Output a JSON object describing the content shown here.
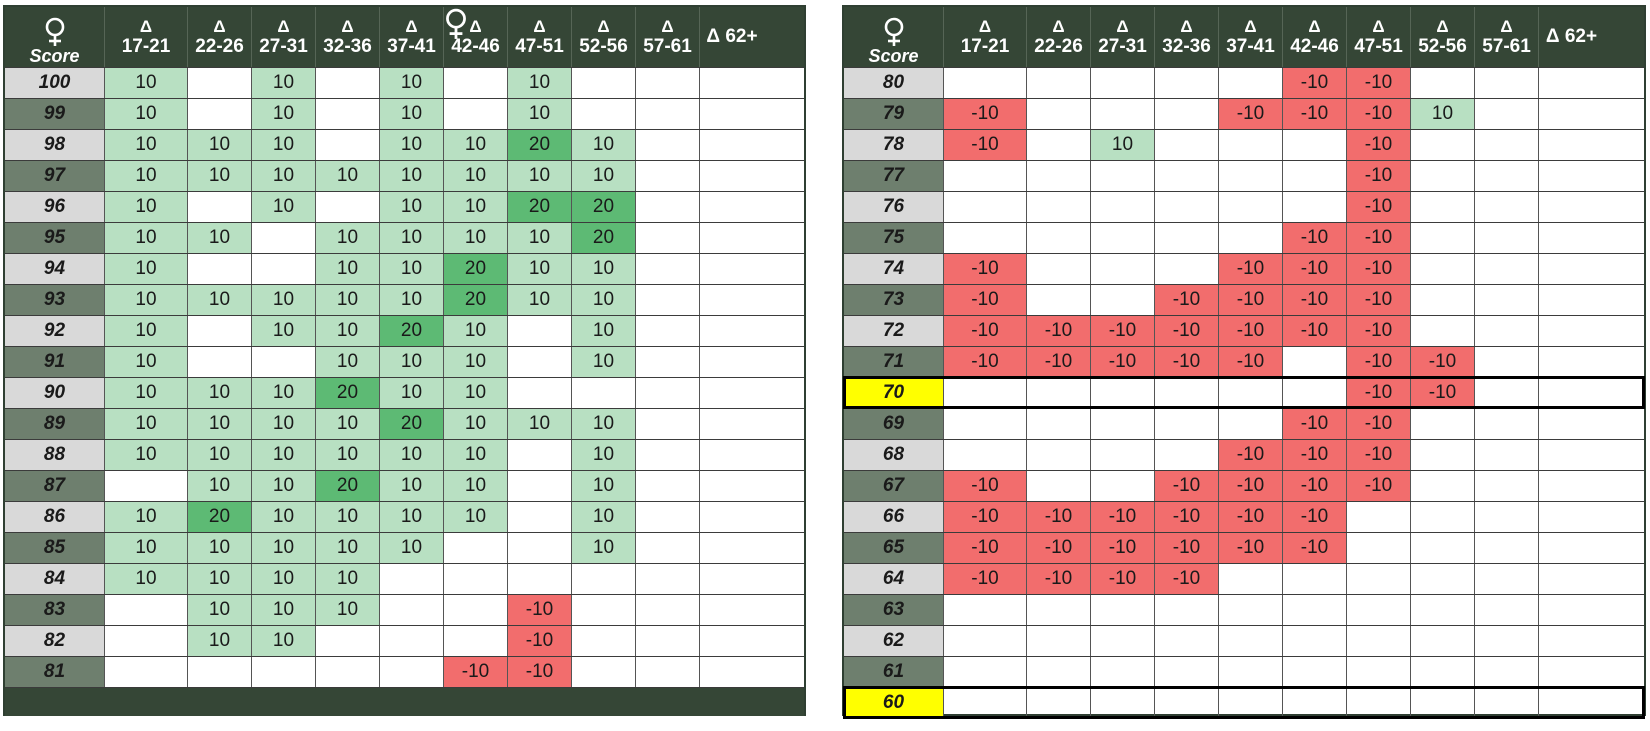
{
  "colors": {
    "header_bg": "#354636",
    "score_light": "#d9d9d9",
    "score_dark": "#6e7f6e",
    "score_highlight": "#ffff00",
    "green_light": "#b8e0c2",
    "green_dark": "#5dba74",
    "red": "#f26d6d"
  },
  "icons": {
    "score_header": "female-symbol-icon"
  },
  "columns": [
    {
      "delta": "Δ",
      "range": "17-21"
    },
    {
      "delta": "Δ",
      "range": "22-26"
    },
    {
      "delta": "Δ",
      "range": "27-31"
    },
    {
      "delta": "Δ",
      "range": "32-36"
    },
    {
      "delta": "Δ",
      "range": "37-41"
    },
    {
      "delta": "Δ",
      "range": "42-46"
    },
    {
      "delta": "Δ",
      "range": "47-51"
    },
    {
      "delta": "Δ",
      "range": "52-56"
    },
    {
      "delta": "Δ",
      "range": "57-61"
    },
    {
      "single": "Δ 62+"
    }
  ],
  "left_table": {
    "score_header": "Score",
    "rows": [
      {
        "score": "100",
        "shade": "light",
        "cells": [
          10,
          null,
          10,
          null,
          10,
          null,
          10,
          null,
          null,
          null
        ]
      },
      {
        "score": "99",
        "shade": "dark",
        "cells": [
          10,
          null,
          10,
          null,
          10,
          null,
          10,
          null,
          null,
          null
        ]
      },
      {
        "score": "98",
        "shade": "light",
        "cells": [
          10,
          10,
          10,
          null,
          10,
          10,
          20,
          10,
          null,
          null
        ]
      },
      {
        "score": "97",
        "shade": "dark",
        "cells": [
          10,
          10,
          10,
          10,
          10,
          10,
          10,
          10,
          null,
          null
        ]
      },
      {
        "score": "96",
        "shade": "light",
        "cells": [
          10,
          null,
          10,
          null,
          10,
          10,
          20,
          20,
          null,
          null
        ]
      },
      {
        "score": "95",
        "shade": "dark",
        "cells": [
          10,
          10,
          null,
          10,
          10,
          10,
          10,
          20,
          null,
          null
        ]
      },
      {
        "score": "94",
        "shade": "light",
        "cells": [
          10,
          null,
          null,
          10,
          10,
          20,
          10,
          10,
          null,
          null
        ]
      },
      {
        "score": "93",
        "shade": "dark",
        "cells": [
          10,
          10,
          10,
          10,
          10,
          20,
          10,
          10,
          null,
          null
        ]
      },
      {
        "score": "92",
        "shade": "light",
        "cells": [
          10,
          null,
          10,
          10,
          20,
          10,
          null,
          10,
          null,
          null
        ]
      },
      {
        "score": "91",
        "shade": "dark",
        "cells": [
          10,
          null,
          null,
          10,
          10,
          10,
          null,
          10,
          null,
          null
        ]
      },
      {
        "score": "90",
        "shade": "light",
        "cells": [
          10,
          10,
          10,
          20,
          10,
          10,
          null,
          null,
          null,
          null
        ]
      },
      {
        "score": "89",
        "shade": "dark",
        "cells": [
          10,
          10,
          10,
          10,
          20,
          10,
          10,
          10,
          null,
          null
        ]
      },
      {
        "score": "88",
        "shade": "light",
        "cells": [
          10,
          10,
          10,
          10,
          10,
          10,
          null,
          10,
          null,
          null
        ]
      },
      {
        "score": "87",
        "shade": "dark",
        "cells": [
          null,
          10,
          10,
          20,
          10,
          10,
          null,
          10,
          null,
          null
        ]
      },
      {
        "score": "86",
        "shade": "light",
        "cells": [
          10,
          20,
          10,
          10,
          10,
          10,
          null,
          10,
          null,
          null
        ]
      },
      {
        "score": "85",
        "shade": "dark",
        "cells": [
          10,
          10,
          10,
          10,
          10,
          null,
          null,
          10,
          null,
          null
        ]
      },
      {
        "score": "84",
        "shade": "light",
        "cells": [
          10,
          10,
          10,
          10,
          null,
          null,
          null,
          null,
          null,
          null
        ]
      },
      {
        "score": "83",
        "shade": "dark",
        "cells": [
          null,
          10,
          10,
          10,
          null,
          null,
          -10,
          null,
          null,
          null
        ]
      },
      {
        "score": "82",
        "shade": "light",
        "cells": [
          null,
          10,
          10,
          null,
          null,
          null,
          -10,
          null,
          null,
          null
        ]
      },
      {
        "score": "81",
        "shade": "dark",
        "cells": [
          null,
          null,
          null,
          null,
          null,
          -10,
          -10,
          null,
          null,
          null
        ]
      }
    ]
  },
  "right_table": {
    "score_header": "Score",
    "rows": [
      {
        "score": "80",
        "shade": "light",
        "cells": [
          null,
          null,
          null,
          null,
          null,
          -10,
          -10,
          null,
          null,
          null
        ]
      },
      {
        "score": "79",
        "shade": "dark",
        "cells": [
          -10,
          null,
          null,
          null,
          -10,
          -10,
          -10,
          10,
          null,
          null
        ]
      },
      {
        "score": "78",
        "shade": "light",
        "cells": [
          -10,
          null,
          10,
          null,
          null,
          null,
          -10,
          null,
          null,
          null
        ]
      },
      {
        "score": "77",
        "shade": "dark",
        "cells": [
          null,
          null,
          null,
          null,
          null,
          null,
          -10,
          null,
          null,
          null
        ]
      },
      {
        "score": "76",
        "shade": "light",
        "cells": [
          null,
          null,
          null,
          null,
          null,
          null,
          -10,
          null,
          null,
          null
        ]
      },
      {
        "score": "75",
        "shade": "dark",
        "cells": [
          null,
          null,
          null,
          null,
          null,
          -10,
          -10,
          null,
          null,
          null
        ]
      },
      {
        "score": "74",
        "shade": "light",
        "cells": [
          -10,
          null,
          null,
          null,
          -10,
          -10,
          -10,
          null,
          null,
          null
        ]
      },
      {
        "score": "73",
        "shade": "dark",
        "cells": [
          -10,
          null,
          null,
          -10,
          -10,
          -10,
          -10,
          null,
          null,
          null
        ]
      },
      {
        "score": "72",
        "shade": "light",
        "cells": [
          -10,
          -10,
          -10,
          -10,
          -10,
          -10,
          -10,
          null,
          null,
          null
        ]
      },
      {
        "score": "71",
        "shade": "dark",
        "cells": [
          -10,
          -10,
          -10,
          -10,
          -10,
          null,
          -10,
          -10,
          null,
          null
        ]
      },
      {
        "score": "70",
        "shade": "yellow",
        "highlight": true,
        "cells": [
          null,
          null,
          null,
          null,
          null,
          null,
          -10,
          -10,
          null,
          null
        ]
      },
      {
        "score": "69",
        "shade": "dark",
        "cells": [
          null,
          null,
          null,
          null,
          null,
          -10,
          -10,
          null,
          null,
          null
        ]
      },
      {
        "score": "68",
        "shade": "light",
        "cells": [
          null,
          null,
          null,
          null,
          -10,
          -10,
          -10,
          null,
          null,
          null
        ]
      },
      {
        "score": "67",
        "shade": "dark",
        "cells": [
          -10,
          null,
          null,
          -10,
          -10,
          -10,
          -10,
          null,
          null,
          null
        ]
      },
      {
        "score": "66",
        "shade": "light",
        "cells": [
          -10,
          -10,
          -10,
          -10,
          -10,
          -10,
          null,
          null,
          null,
          null
        ]
      },
      {
        "score": "65",
        "shade": "dark",
        "cells": [
          -10,
          -10,
          -10,
          -10,
          -10,
          -10,
          null,
          null,
          null,
          null
        ]
      },
      {
        "score": "64",
        "shade": "light",
        "cells": [
          -10,
          -10,
          -10,
          -10,
          null,
          null,
          null,
          null,
          null,
          null
        ]
      },
      {
        "score": "63",
        "shade": "dark",
        "cells": [
          null,
          null,
          null,
          null,
          null,
          null,
          null,
          null,
          null,
          null
        ]
      },
      {
        "score": "62",
        "shade": "light",
        "cells": [
          null,
          null,
          null,
          null,
          null,
          null,
          null,
          null,
          null,
          null
        ]
      },
      {
        "score": "61",
        "shade": "dark",
        "cells": [
          null,
          null,
          null,
          null,
          null,
          null,
          null,
          null,
          null,
          null
        ]
      },
      {
        "score": "60",
        "shade": "yellow",
        "highlight": true,
        "cells": [
          null,
          null,
          null,
          null,
          null,
          null,
          null,
          null,
          null,
          null
        ]
      }
    ]
  }
}
